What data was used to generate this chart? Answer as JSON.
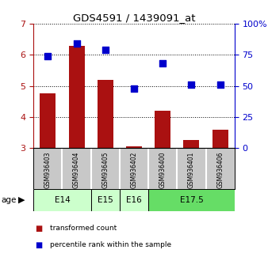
{
  "title": "GDS4591 / 1439091_at",
  "samples": [
    "GSM936403",
    "GSM936404",
    "GSM936405",
    "GSM936402",
    "GSM936400",
    "GSM936401",
    "GSM936406"
  ],
  "transformed_count": [
    4.75,
    6.3,
    5.2,
    3.05,
    4.2,
    3.25,
    3.6
  ],
  "percentile_rank": [
    74.0,
    84.0,
    79.0,
    48.0,
    68.0,
    51.0,
    51.0
  ],
  "bar_color": "#aa1111",
  "dot_color": "#0000cc",
  "ylim_left": [
    3,
    7
  ],
  "ylim_right": [
    0,
    100
  ],
  "yticks_left": [
    3,
    4,
    5,
    6,
    7
  ],
  "yticks_right": [
    0,
    25,
    50,
    75,
    100
  ],
  "ytick_labels_right": [
    "0",
    "25",
    "50",
    "75",
    "100%"
  ],
  "groups": [
    {
      "label": "E14",
      "indices": [
        0,
        1
      ],
      "color": "#ccffcc"
    },
    {
      "label": "E15",
      "indices": [
        2
      ],
      "color": "#ccffcc"
    },
    {
      "label": "E16",
      "indices": [
        3
      ],
      "color": "#ccffcc"
    },
    {
      "label": "E17.5",
      "indices": [
        4,
        5,
        6
      ],
      "color": "#66dd66"
    }
  ],
  "age_label": "age",
  "legend_items": [
    {
      "color": "#aa1111",
      "label": "transformed count"
    },
    {
      "color": "#0000cc",
      "label": "percentile rank within the sample"
    }
  ],
  "background_color": "#ffffff",
  "sample_bg_color": "#c8c8c8"
}
